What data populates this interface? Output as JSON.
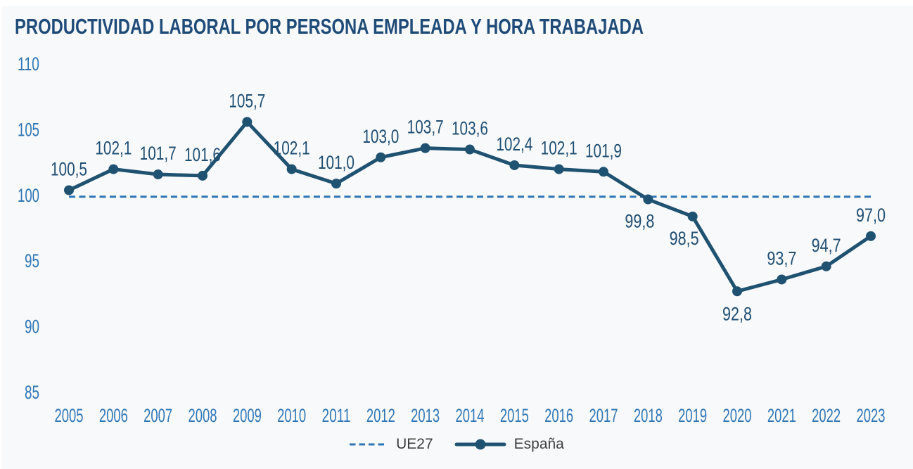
{
  "page": {
    "background": "#F8F9FA",
    "edge_strip_color": "#FFFFFF"
  },
  "chart_data": {
    "type": "line",
    "title": "PRODUCTIVIDAD LABORAL POR PERSONA EMPLEADA Y HORA TRABAJADA",
    "xlabel": "",
    "ylabel": "",
    "x_categories": [
      "2005",
      "2006",
      "2007",
      "2008",
      "2009",
      "2010",
      "2011",
      "2012",
      "2013",
      "2014",
      "2015",
      "2016",
      "2017",
      "2018",
      "2019",
      "2020",
      "2021",
      "2022",
      "2023"
    ],
    "y_ticks": [
      110,
      105,
      100,
      95,
      90,
      85
    ],
    "ylim": [
      85,
      110
    ],
    "grid": false,
    "legend_position": "bottom-center",
    "series": [
      {
        "name": "UE27",
        "style": "dashed",
        "color": "#2E76B6",
        "values": [
          100,
          100,
          100,
          100,
          100,
          100,
          100,
          100,
          100,
          100,
          100,
          100,
          100,
          100,
          100,
          100,
          100,
          100,
          100
        ]
      },
      {
        "name": "España",
        "style": "solid-with-markers",
        "color": "#1F5270",
        "values": [
          100.5,
          102.1,
          101.7,
          101.6,
          105.7,
          102.1,
          101.0,
          103.0,
          103.7,
          103.6,
          102.4,
          102.1,
          101.9,
          99.8,
          98.5,
          92.8,
          93.7,
          94.7,
          97.0
        ],
        "labels": [
          "100,5",
          "102,1",
          "101,7",
          "101,6",
          "105,7",
          "102,1",
          "101,0",
          "103,0",
          "103,7",
          "103,6",
          "102,4",
          "102,1",
          "101,9",
          "99,8",
          "98,5",
          "92,8",
          "93,7",
          "94,7",
          "97,0"
        ],
        "label_placement": [
          "above",
          "above",
          "above",
          "above",
          "above",
          "above",
          "above",
          "above",
          "above",
          "above",
          "above",
          "above",
          "above",
          "below-left",
          "below-left",
          "below",
          "above",
          "above",
          "above"
        ]
      }
    ],
    "colors": {
      "title": "#1E4B78",
      "axis_labels": "#2E76B6",
      "data_labels": "#1F4E73",
      "legend_text": "#3F3F3F"
    }
  }
}
